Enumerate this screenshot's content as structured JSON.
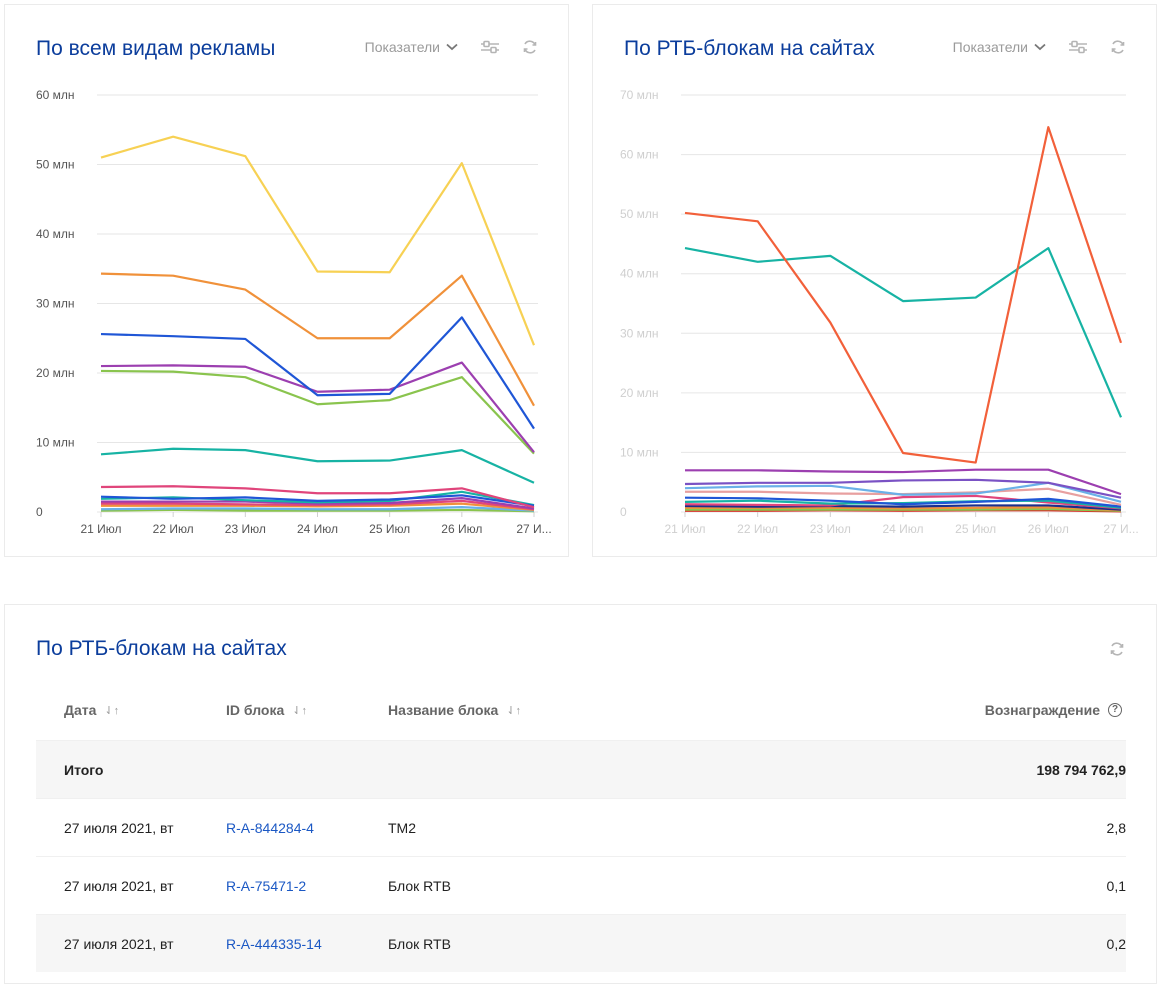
{
  "chart1": {
    "title": "По всем видам рекламы",
    "metrics_label": "Показатели",
    "settings_icon": "sliders-icon",
    "refresh_icon": "refresh-icon",
    "chart_data": {
      "type": "line",
      "categories": [
        "21 Июл",
        "22 Июл",
        "23 Июл",
        "24 Июл",
        "25 Июл",
        "26 Июл",
        "27 И..."
      ],
      "y_ticks": [
        "0",
        "10 млн",
        "20 млн",
        "30 млн",
        "40 млн",
        "50 млн",
        "60 млн"
      ],
      "ylim": [
        0,
        60000000
      ],
      "grid": true,
      "series": [
        {
          "color": "#f7d154",
          "values": [
            51000000,
            54000000,
            51200000,
            34600000,
            34500000,
            50200000,
            24000000
          ]
        },
        {
          "color": "#f0913a",
          "values": [
            34300000,
            34000000,
            32000000,
            25000000,
            25000000,
            34000000,
            15300000
          ]
        },
        {
          "color": "#1f56d6",
          "values": [
            25600000,
            25300000,
            24900000,
            16800000,
            17000000,
            28000000,
            12000000
          ]
        },
        {
          "color": "#9c3fb0",
          "values": [
            21000000,
            21100000,
            20900000,
            17300000,
            17600000,
            21500000,
            8600000
          ]
        },
        {
          "color": "#8ac44e",
          "values": [
            20300000,
            20200000,
            19400000,
            15500000,
            16100000,
            19400000,
            8400000
          ]
        },
        {
          "color": "#17b3a4",
          "values": [
            8300000,
            9100000,
            8900000,
            7300000,
            7400000,
            8900000,
            4200000
          ]
        },
        {
          "color": "#e0457b",
          "values": [
            3600000,
            3700000,
            3400000,
            2700000,
            2700000,
            3400000,
            700000
          ]
        },
        {
          "color": "#1f56d6",
          "values": [
            2200000,
            1900000,
            2100000,
            1600000,
            1800000,
            2400000,
            900000
          ]
        },
        {
          "color": "#17b3a4",
          "values": [
            1900000,
            2100000,
            1700000,
            1400000,
            1600000,
            2900000,
            1000000
          ]
        },
        {
          "color": "#9c3fb0",
          "values": [
            1500000,
            1500000,
            1500000,
            1200000,
            1300000,
            2000000,
            500000
          ]
        },
        {
          "color": "#e0457b",
          "values": [
            1200000,
            1200000,
            1100000,
            1000000,
            1100000,
            1600000,
            400000
          ]
        },
        {
          "color": "#f0913a",
          "values": [
            900000,
            900000,
            900000,
            800000,
            900000,
            1200000,
            300000
          ]
        },
        {
          "color": "#6ab0e8",
          "values": [
            400000,
            500000,
            500000,
            400000,
            400000,
            700000,
            200000
          ]
        },
        {
          "color": "#8ac44e",
          "values": [
            200000,
            300000,
            200000,
            200000,
            200000,
            300000,
            100000
          ]
        }
      ]
    }
  },
  "chart2": {
    "title": "По РТБ-блокам на сайтах",
    "metrics_label": "Показатели",
    "settings_icon": "sliders-icon",
    "refresh_icon": "refresh-icon",
    "chart_data": {
      "type": "line",
      "categories": [
        "21 Июл",
        "22 Июл",
        "23 Июл",
        "24 Июл",
        "25 Июл",
        "26 Июл",
        "27 И..."
      ],
      "y_ticks": [
        "0",
        "10 млн",
        "20 млн",
        "30 млн",
        "40 млн",
        "50 млн",
        "60 млн",
        "70 млн"
      ],
      "ylim": [
        0,
        70000000
      ],
      "grid": true,
      "series": [
        {
          "color": "#f2603a",
          "values": [
            50200000,
            48800000,
            31800000,
            9900000,
            8300000,
            64600000,
            28400000
          ]
        },
        {
          "color": "#17b3a4",
          "values": [
            44300000,
            42000000,
            43000000,
            35400000,
            36000000,
            44300000,
            15900000
          ]
        },
        {
          "color": "#9c3fb0",
          "values": [
            7000000,
            7000000,
            6800000,
            6700000,
            7100000,
            7100000,
            3000000
          ]
        },
        {
          "color": "#7a52c4",
          "values": [
            4700000,
            4900000,
            4900000,
            5300000,
            5400000,
            4900000,
            2400000
          ]
        },
        {
          "color": "#6ab0e8",
          "values": [
            4000000,
            4300000,
            4400000,
            2900000,
            3100000,
            4900000,
            1700000
          ]
        },
        {
          "color": "#e8a0a0",
          "values": [
            3400000,
            3400000,
            3100000,
            3000000,
            3300000,
            3900000,
            1200000
          ]
        },
        {
          "color": "#1f56d6",
          "values": [
            2400000,
            2300000,
            1900000,
            1300000,
            1700000,
            2200000,
            900000
          ]
        },
        {
          "color": "#17b3a4",
          "values": [
            1700000,
            1900000,
            1400000,
            1500000,
            1800000,
            1900000,
            700000
          ]
        },
        {
          "color": "#e0457b",
          "values": [
            1300000,
            1200000,
            1100000,
            2500000,
            2700000,
            1600000,
            600000
          ]
        },
        {
          "color": "#1a2f8c",
          "values": [
            1000000,
            900000,
            1000000,
            900000,
            1100000,
            1100000,
            400000
          ]
        },
        {
          "color": "#f0913a",
          "values": [
            700000,
            700000,
            700000,
            600000,
            700000,
            800000,
            300000
          ]
        },
        {
          "color": "#8ac44e",
          "values": [
            400000,
            400000,
            400000,
            400000,
            400000,
            500000,
            200000
          ]
        },
        {
          "color": "#d9322a",
          "values": [
            200000,
            200000,
            300000,
            200000,
            300000,
            300000,
            100000
          ]
        }
      ]
    }
  },
  "table": {
    "title": "По РТБ-блокам на сайтах",
    "refresh_icon": "refresh-icon",
    "columns": {
      "date": "Дата",
      "id": "ID блока",
      "name": "Название блока",
      "reward": "Вознаграждение"
    },
    "sort_icon": "⇃↑",
    "help_icon": "?",
    "total_label": "Итого",
    "total_value": "198 794 762,9",
    "rows": [
      {
        "date": "27 июля 2021, вт",
        "id": "R-A-844284-4",
        "name": "TM2",
        "reward": "2,8"
      },
      {
        "date": "27 июля 2021, вт",
        "id": "R-A-75471-2",
        "name": "Блок RTB",
        "reward": "0,1"
      },
      {
        "date": "27 июля 2021, вт",
        "id": "R-A-444335-14",
        "name": "Блок RTB",
        "reward": "0,2"
      }
    ]
  }
}
